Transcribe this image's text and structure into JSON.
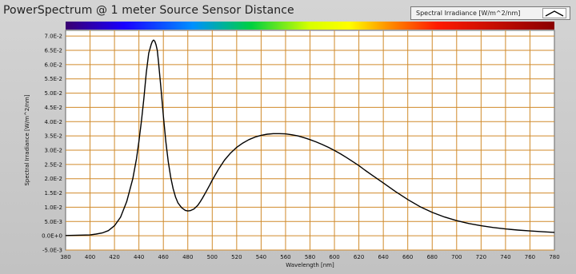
{
  "chart_data": {
    "type": "line",
    "title": "PowerSpectrum @ 1 meter Source Sensor Distance",
    "xlabel": "Wavelength [nm]",
    "ylabel": "Spectral Irradiance [W/m^2/nm]",
    "xlim": [
      380,
      780
    ],
    "ylim": [
      -0.005,
      0.072
    ],
    "x_ticks": [
      380,
      400,
      420,
      440,
      460,
      480,
      500,
      520,
      540,
      560,
      580,
      600,
      620,
      640,
      660,
      680,
      700,
      720,
      740,
      760,
      780
    ],
    "x_tick_labels": [
      "380",
      "400",
      "420",
      "440",
      "460",
      "480",
      "500",
      "520",
      "540",
      "560",
      "580",
      "600",
      "620",
      "640",
      "660",
      "680",
      "700",
      "720",
      "740",
      "760",
      "780"
    ],
    "y_ticks": [
      -0.005,
      0.0,
      0.005,
      0.01,
      0.015,
      0.02,
      0.025,
      0.03,
      0.035,
      0.04,
      0.045,
      0.05,
      0.055,
      0.06,
      0.065,
      0.07
    ],
    "y_tick_labels": [
      "-5.0E-3",
      "0.0E+0",
      "5.0E-3",
      "1.0E-2",
      "1.5E-2",
      "2.0E-2",
      "2.5E-2",
      "3.0E-2",
      "3.5E-2",
      "4.0E-2",
      "4.5E-2",
      "5.0E-2",
      "5.5E-2",
      "6.0E-2",
      "6.5E-2",
      "7.0E-2"
    ],
    "grid": true,
    "colors": {
      "plot_bg": "#ffffff",
      "grid": "#d08a2a",
      "line": "#000000"
    },
    "legend": {
      "label": "Spectral Irradiance [W/m^2/nm]",
      "placement": "top-right"
    },
    "spectrum_bar": true,
    "series": [
      {
        "name": "Spectral Irradiance [W/m^2/nm]",
        "x": [
          380,
          390,
          400,
          405,
          410,
          415,
          420,
          425,
          430,
          435,
          438,
          440,
          442,
          444,
          446,
          448,
          450,
          451,
          452,
          453,
          454,
          455,
          456,
          458,
          460,
          462,
          464,
          466,
          468,
          470,
          472,
          475,
          478,
          480,
          482,
          485,
          488,
          490,
          492,
          495,
          498,
          500,
          505,
          510,
          515,
          520,
          525,
          530,
          535,
          540,
          545,
          550,
          555,
          560,
          565,
          570,
          575,
          580,
          585,
          590,
          595,
          600,
          605,
          610,
          615,
          620,
          625,
          630,
          640,
          650,
          660,
          670,
          680,
          690,
          700,
          710,
          720,
          730,
          740,
          750,
          760,
          770,
          780
        ],
        "y": [
          0.0001,
          0.0002,
          0.0003,
          0.0006,
          0.001,
          0.0018,
          0.0035,
          0.0065,
          0.012,
          0.02,
          0.027,
          0.033,
          0.04,
          0.048,
          0.057,
          0.064,
          0.067,
          0.0682,
          0.0686,
          0.0682,
          0.067,
          0.065,
          0.061,
          0.052,
          0.042,
          0.033,
          0.026,
          0.0205,
          0.0165,
          0.0135,
          0.0115,
          0.0098,
          0.0089,
          0.0087,
          0.0088,
          0.0094,
          0.0106,
          0.0118,
          0.0132,
          0.0155,
          0.0178,
          0.0195,
          0.0232,
          0.0265,
          0.029,
          0.031,
          0.0325,
          0.0337,
          0.0346,
          0.0352,
          0.0356,
          0.0358,
          0.0358,
          0.0357,
          0.0354,
          0.035,
          0.0344,
          0.0337,
          0.0329,
          0.032,
          0.031,
          0.0299,
          0.0287,
          0.0274,
          0.026,
          0.0246,
          0.023,
          0.0215,
          0.0185,
          0.0155,
          0.0127,
          0.0102,
          0.0082,
          0.0066,
          0.0053,
          0.0043,
          0.0035,
          0.0029,
          0.0024,
          0.002,
          0.0017,
          0.0014,
          0.0012
        ]
      }
    ]
  }
}
